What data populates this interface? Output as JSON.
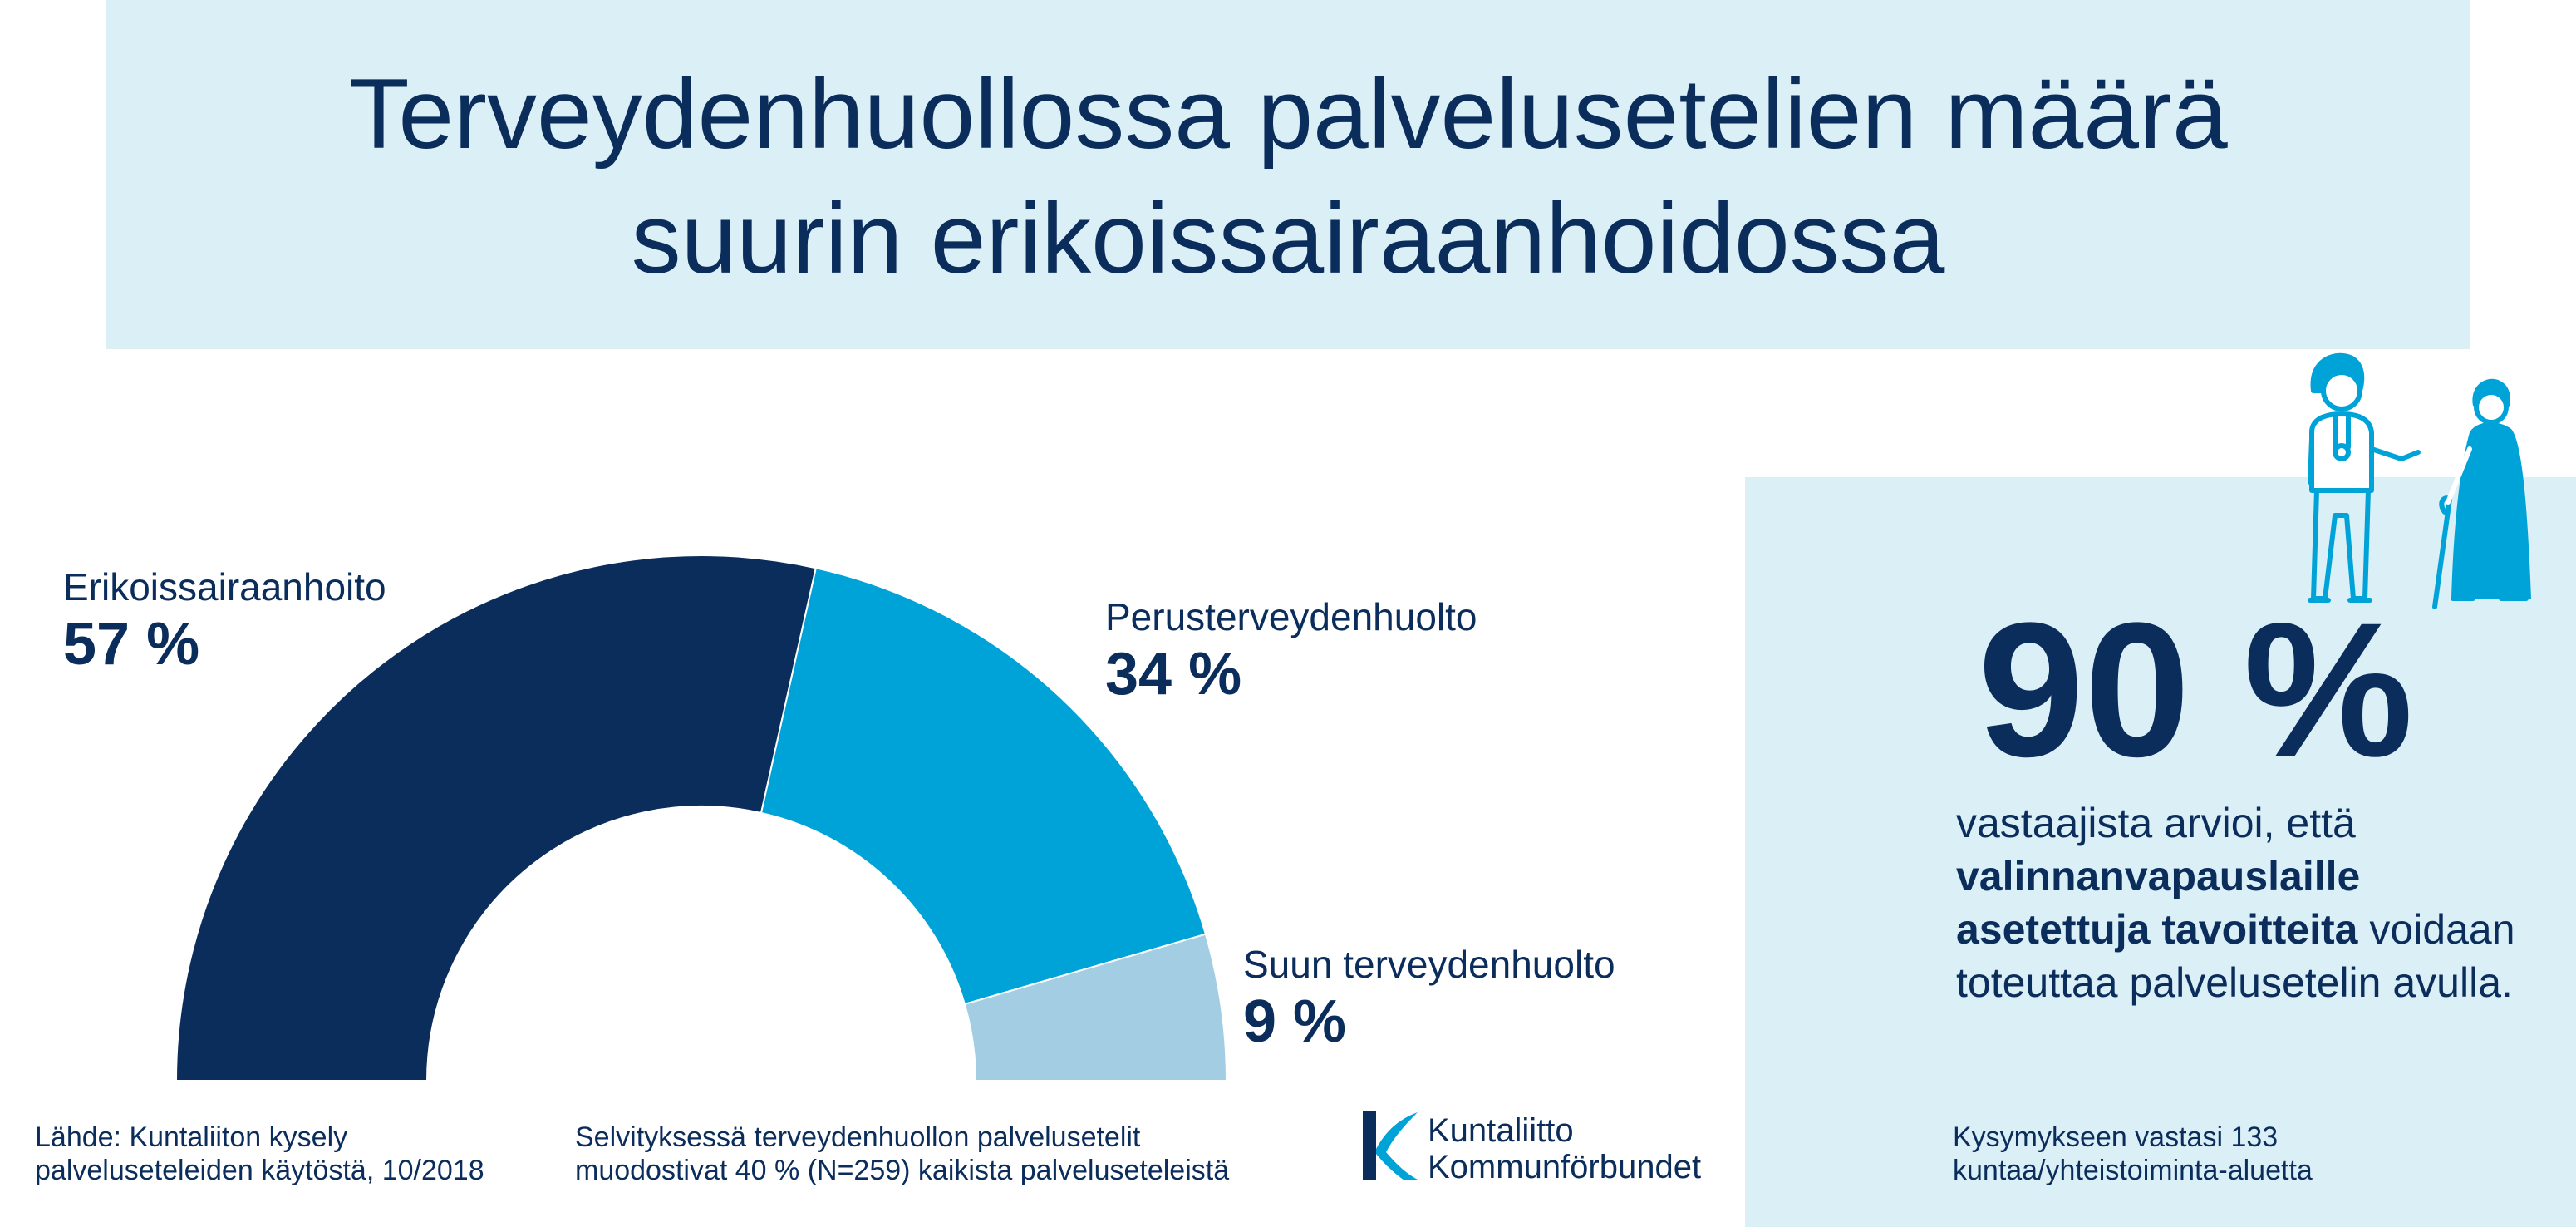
{
  "title": {
    "line1": "Terveydenhuollossa palvelusetelien määrä",
    "line2": "suurin erikoissairaanhoidossa"
  },
  "chart_data": {
    "type": "pie",
    "variant": "half-donut",
    "title": "Terveydenhuollossa palvelusetelien määrä suurin erikoissairaanhoidossa",
    "categories": [
      "Erikoissairaanhoito",
      "Perusterveydenhuolto",
      "Suun terveydenhuolto"
    ],
    "values": [
      57,
      34,
      9
    ],
    "value_labels": [
      "57 %",
      "34 %",
      "9 %"
    ],
    "colors": [
      "#0b2d5c",
      "#00a3d8",
      "#a3cde3"
    ]
  },
  "stat": {
    "value": "90 %",
    "text_part1": "vastaajista arvioi, että",
    "text_bold": "valinnanvapauslaille asetettuja tavoitteita",
    "text_part2": "voidaan toteuttaa palvelusetelin avulla."
  },
  "footer": {
    "source_line1": "Lähde: Kuntaliiton kysely",
    "source_line2": "palveluseteleiden käytöstä, 10/2018",
    "note_line1": "Selvityksessä terveydenhuollon palvelusetelit",
    "note_line2": "muodostivat 40 % (N=259) kaikista palveluseteleistä",
    "respondents_line1": "Kysymykseen vastasi 133",
    "respondents_line2": "kuntaa/yhteistoiminta-aluetta"
  },
  "logo": {
    "line1": "Kuntaliitto",
    "line2": "Kommunförbundet"
  },
  "icons": [
    "nurse-icon",
    "elderly-person-with-cane-icon",
    "kuntaliitto-logo-icon"
  ],
  "colors": {
    "dark_blue": "#0b2d5c",
    "mid_blue": "#00a3d8",
    "light_blue": "#a3cde3",
    "panel_bg": "#dbeff7"
  }
}
